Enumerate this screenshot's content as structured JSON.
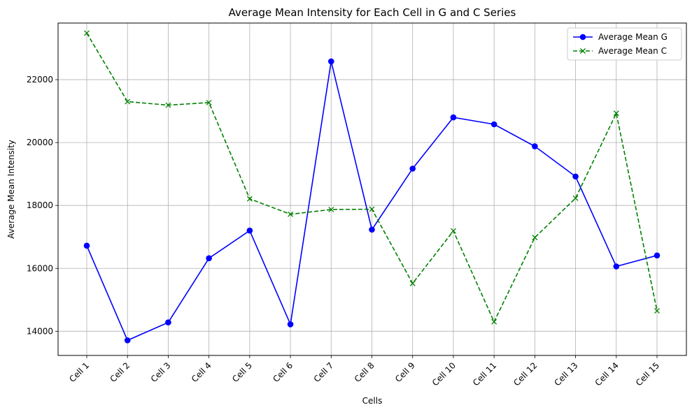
{
  "chart_data": {
    "type": "line",
    "title": "Average Mean Intensity for Each Cell in G and C Series",
    "xlabel": "Cells",
    "ylabel": "Average Mean Intensity",
    "categories": [
      "Cell 1",
      "Cell 2",
      "Cell 3",
      "Cell 4",
      "Cell 5",
      "Cell 6",
      "Cell 7",
      "Cell 8",
      "Cell 9",
      "Cell 10",
      "Cell 11",
      "Cell 12",
      "Cell 13",
      "Cell 14",
      "Cell 15"
    ],
    "yticks": [
      14000,
      16000,
      18000,
      20000,
      22000
    ],
    "ylim": [
      13230,
      23800
    ],
    "grid": true,
    "legend_position": "top-right",
    "series": [
      {
        "name": "Average Mean G",
        "color": "#0000ff",
        "line_style": "solid",
        "marker": "circle",
        "values": [
          16720,
          13710,
          14280,
          16320,
          17200,
          14220,
          22580,
          17230,
          19170,
          20800,
          20580,
          19880,
          18920,
          16060,
          16410
        ]
      },
      {
        "name": "Average Mean C",
        "color": "#008000",
        "line_style": "dashed",
        "marker": "x",
        "values": [
          23480,
          21300,
          21190,
          21270,
          18210,
          17720,
          17870,
          17880,
          15520,
          17190,
          14300,
          16980,
          18230,
          20930,
          14650
        ]
      }
    ]
  }
}
